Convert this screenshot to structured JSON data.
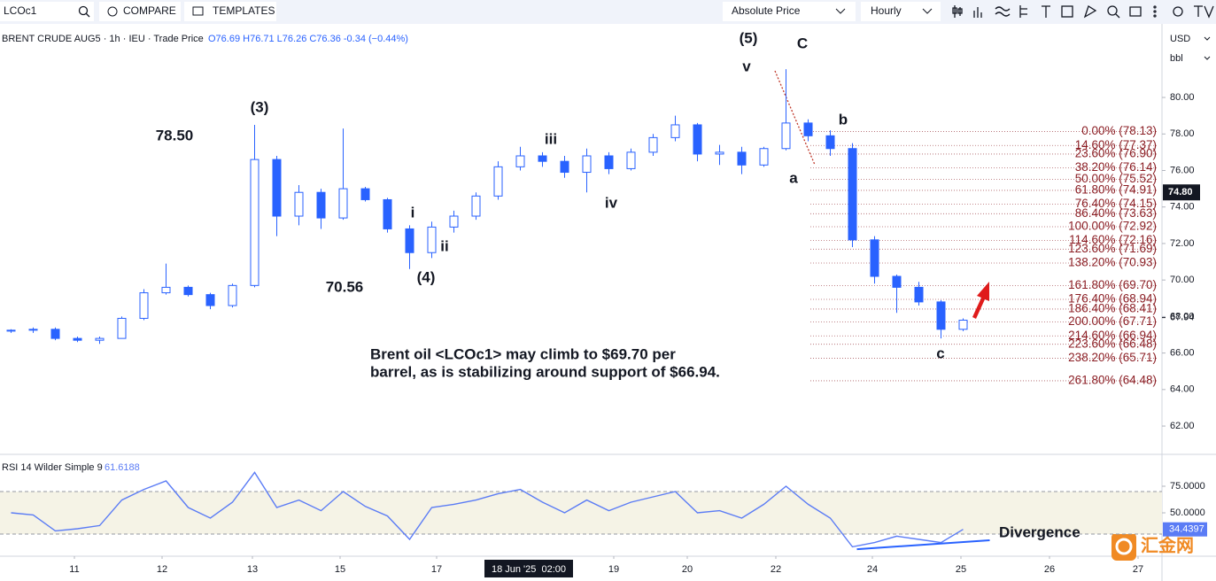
{
  "toolbar": {
    "symbol": "LCOc1",
    "compare": "COMPARE",
    "templates": "TEMPLATES",
    "scale_mode": "Absolute Price",
    "interval": "Hourly"
  },
  "axis_units": {
    "currency": "USD",
    "unit": "bbl"
  },
  "watermark": "汇金网",
  "chart_data": [
    {
      "type": "candlestick",
      "title": "BRENT CRUDE AUG5 · 1h · IEU · Trade Price",
      "ohlc_text": "O76.69 H76.71 L76.26 C76.36 -0.34 (−0.44%)",
      "color_up": "#2962ff",
      "color_down": "#2962ff",
      "x": [
        0.5,
        1.5,
        2.5,
        3.5,
        4.5,
        5.5,
        6.5,
        7.5,
        8.5,
        9.5,
        10.5,
        11.5,
        12.5,
        13.5,
        14.5,
        15.5,
        16.5,
        17.5,
        18.5,
        19.5,
        20.5,
        21.5,
        22.5,
        23.5,
        24.5,
        25.5,
        26.5,
        27.5,
        28.5,
        29.5,
        30.5,
        31.5,
        32.5,
        33.5,
        34.5,
        35.5,
        36.5,
        37.5,
        38.5,
        39.5,
        40.5,
        41.5,
        42.5,
        43.5
      ],
      "open": [
        67.2,
        67.25,
        67.3,
        66.8,
        66.7,
        66.8,
        67.9,
        69.3,
        69.6,
        69.2,
        68.6,
        69.7,
        76.6,
        73.5,
        74.8,
        73.4,
        75.0,
        74.4,
        72.8,
        71.5,
        72.9,
        73.5,
        74.6,
        76.2,
        76.8,
        76.5,
        75.9,
        76.8,
        76.1,
        77.0,
        77.8,
        78.5,
        76.9,
        77.0,
        76.3,
        77.2,
        78.6,
        77.9,
        77.2,
        72.2,
        70.2,
        69.6,
        68.8,
        67.3
      ],
      "high": [
        67.3,
        67.4,
        67.4,
        66.9,
        66.9,
        68.0,
        69.5,
        70.9,
        69.7,
        69.3,
        69.8,
        78.5,
        76.8,
        75.2,
        75.0,
        78.3,
        75.1,
        74.5,
        73.0,
        73.2,
        73.8,
        74.8,
        76.5,
        77.3,
        77.0,
        76.8,
        77.2,
        77.0,
        77.2,
        78.0,
        79.0,
        78.6,
        77.4,
        77.3,
        77.3,
        81.55,
        78.8,
        78.2,
        77.5,
        72.4,
        70.3,
        69.9,
        68.9,
        67.9
      ],
      "low": [
        67.1,
        67.1,
        66.7,
        66.6,
        66.5,
        66.8,
        67.8,
        69.2,
        69.1,
        68.4,
        68.5,
        69.6,
        72.4,
        73.0,
        72.8,
        73.3,
        74.3,
        72.6,
        70.6,
        71.2,
        72.6,
        73.3,
        74.4,
        76.0,
        76.2,
        75.6,
        74.8,
        75.8,
        76.0,
        76.8,
        77.6,
        76.5,
        76.3,
        75.8,
        76.2,
        77.1,
        77.6,
        76.8,
        71.8,
        69.8,
        68.2,
        68.6,
        66.8,
        67.2
      ],
      "close": [
        67.25,
        67.3,
        66.8,
        66.7,
        66.8,
        67.9,
        69.3,
        69.6,
        69.2,
        68.6,
        69.7,
        76.6,
        73.5,
        74.8,
        73.4,
        75.0,
        74.4,
        72.8,
        71.5,
        72.9,
        73.5,
        74.6,
        76.2,
        76.8,
        76.5,
        75.9,
        76.8,
        76.1,
        77.0,
        77.8,
        78.5,
        76.9,
        77.0,
        76.3,
        77.2,
        78.6,
        77.9,
        77.2,
        72.2,
        70.2,
        69.6,
        68.8,
        67.3,
        67.8
      ],
      "xlim": [
        0,
        52.48
      ],
      "xticks": [
        {
          "value": 3.36,
          "label": "11"
        },
        {
          "value": 7.32,
          "label": "12"
        },
        {
          "value": 11.4,
          "label": "13"
        },
        {
          "value": 15.36,
          "label": "15"
        },
        {
          "value": 19.72,
          "label": "17"
        },
        {
          "value": 27.72,
          "label": "19"
        },
        {
          "value": 31.04,
          "label": "20"
        },
        {
          "value": 35.04,
          "label": "22"
        },
        {
          "value": 39.4,
          "label": "24"
        },
        {
          "value": 43.4,
          "label": "25"
        },
        {
          "value": 47.4,
          "label": "26"
        },
        {
          "value": 51.4,
          "label": "27"
        }
      ],
      "crosshair_x": {
        "value": 23.88,
        "label": "18 Jun '25  02:00"
      },
      "ylim": [
        60.45,
        83.98
      ],
      "yticks": [
        {
          "value": 62,
          "label": "62.00"
        },
        {
          "value": 64,
          "label": "64.00"
        },
        {
          "value": 66,
          "label": "66.00"
        },
        {
          "value": 68,
          "label": "68.00"
        },
        {
          "value": 70,
          "label": "70.00"
        },
        {
          "value": 72,
          "label": "72.00"
        },
        {
          "value": 74,
          "label": "74.00"
        },
        {
          "value": 76,
          "label": "76.00"
        },
        {
          "value": 78,
          "label": "78.00"
        },
        {
          "value": 80,
          "label": "80.00"
        }
      ],
      "last_price": {
        "value": 67.94,
        "label": "67.94"
      },
      "crosshair_price": {
        "value": 74.8,
        "label": "74.80"
      },
      "grid": false,
      "fib_color": "#8b1e24",
      "fib_levels": [
        {
          "value": 78.13,
          "label": "0.00% (78.13)"
        },
        {
          "value": 77.37,
          "label": "14.60% (77.37)"
        },
        {
          "value": 76.9,
          "label": "23.60% (76.90)"
        },
        {
          "value": 76.14,
          "label": "38.20% (76.14)"
        },
        {
          "value": 75.52,
          "label": "50.00% (75.52)"
        },
        {
          "value": 74.91,
          "label": "61.80% (74.91)"
        },
        {
          "value": 74.15,
          "label": "76.40% (74.15)"
        },
        {
          "value": 73.63,
          "label": "86.40% (73.63)"
        },
        {
          "value": 72.92,
          "label": "100.00% (72.92)"
        },
        {
          "value": 72.16,
          "label": "114.60% (72.16)"
        },
        {
          "value": 71.69,
          "label": "123.60% (71.69)"
        },
        {
          "value": 70.93,
          "label": "138.20% (70.93)"
        },
        {
          "value": 69.7,
          "label": "161.80% (69.70)"
        },
        {
          "value": 68.94,
          "label": "176.40% (68.94)"
        },
        {
          "value": 68.41,
          "label": "186.40% (68.41)"
        },
        {
          "value": 67.71,
          "label": "200.00% (67.71)"
        },
        {
          "value": 66.94,
          "label": "214.60% (66.94)"
        },
        {
          "value": 66.48,
          "label": "223.60% (66.48)"
        },
        {
          "value": 65.71,
          "label": "238.20% (65.71)"
        },
        {
          "value": 64.48,
          "label": "261.80% (64.48)"
        }
      ],
      "annotations": [
        "78.50",
        "(3)",
        "70.56",
        "(4)",
        "i",
        "ii",
        "iii",
        "iv",
        "v",
        "(5)",
        "C",
        "a",
        "b",
        "c"
      ],
      "note": [
        "Brent oil <LCOc1> may climb to $69.70 per",
        "barrel, as is stabilizing around support of $66.94."
      ]
    },
    {
      "type": "line",
      "title": "RSI 14 Wilder Simple 9",
      "current": 61.6188,
      "x": [
        0.5,
        1.5,
        2.5,
        3.5,
        4.5,
        5.5,
        6.5,
        7.5,
        8.5,
        9.5,
        10.5,
        11.5,
        12.5,
        13.5,
        14.5,
        15.5,
        16.5,
        17.5,
        18.5,
        19.5,
        20.5,
        21.5,
        22.5,
        23.5,
        24.5,
        25.5,
        26.5,
        27.5,
        28.5,
        29.5,
        30.5,
        31.5,
        32.5,
        33.5,
        34.5,
        35.5,
        36.5,
        37.5,
        38.5,
        39.5,
        40.5,
        41.5,
        42.5,
        43.5
      ],
      "series": [
        {
          "color": "#5b7cf5",
          "values": [
            50,
            48,
            33,
            35,
            38,
            62,
            72,
            80,
            55,
            45,
            60,
            88,
            55,
            62,
            52,
            70,
            56,
            47,
            25,
            55,
            58,
            62,
            68,
            72,
            60,
            50,
            62,
            52,
            60,
            65,
            70,
            50,
            52,
            45,
            58,
            75,
            58,
            45,
            18,
            22,
            28,
            25,
            22,
            34.4397
          ]
        }
      ],
      "xlim": [
        0,
        52.48
      ],
      "ylim": [
        9.2,
        105
      ],
      "yticks": [
        {
          "value": 75,
          "label": "75.0000"
        },
        {
          "value": 50,
          "label": "50.0000"
        }
      ],
      "band": [
        30,
        70
      ],
      "last": 34.4397,
      "divergence": {
        "label": "Divergence",
        "color": "#2962ff",
        "x": [
          38.7,
          44.7
        ],
        "y": [
          15.8,
          24.2
        ]
      }
    }
  ]
}
